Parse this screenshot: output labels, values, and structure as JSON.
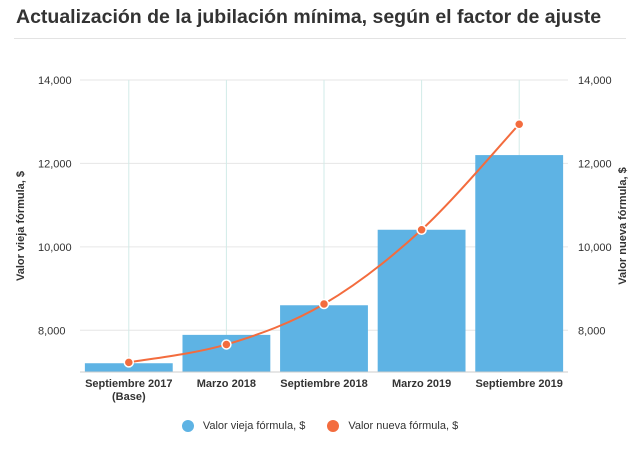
{
  "title": "Actualización de la jubilación mínima, según el factor de ajuste",
  "chart_data": {
    "type": "bar",
    "categories": [
      [
        "Septiembre 2017",
        "(Base)"
      ],
      [
        "Marzo 2018"
      ],
      [
        "Septiembre 2018"
      ],
      [
        "Marzo 2019"
      ],
      [
        "Septiembre 2019"
      ]
    ],
    "series": [
      {
        "name": "Valor vieja fórmula, $",
        "type": "bar",
        "color": "#5eb3e4",
        "values": [
          7210,
          7890,
          8600,
          10410,
          12200
        ]
      },
      {
        "name": "Valor nueva fórmula, $",
        "type": "line",
        "color": "#f36c3e",
        "values": [
          7230,
          7660,
          8630,
          10410,
          12940
        ]
      }
    ],
    "ylabel_left": "Valor vieja fórmula, $",
    "ylabel_right": "Valor nueva fórmula, $",
    "ylim": [
      7000,
      14000
    ],
    "yticks": [
      8000,
      10000,
      12000,
      14000
    ],
    "ytick_labels": [
      "8,000",
      "10,000",
      "12,000",
      "14,000"
    ],
    "grid": true,
    "legend": "bottom"
  }
}
